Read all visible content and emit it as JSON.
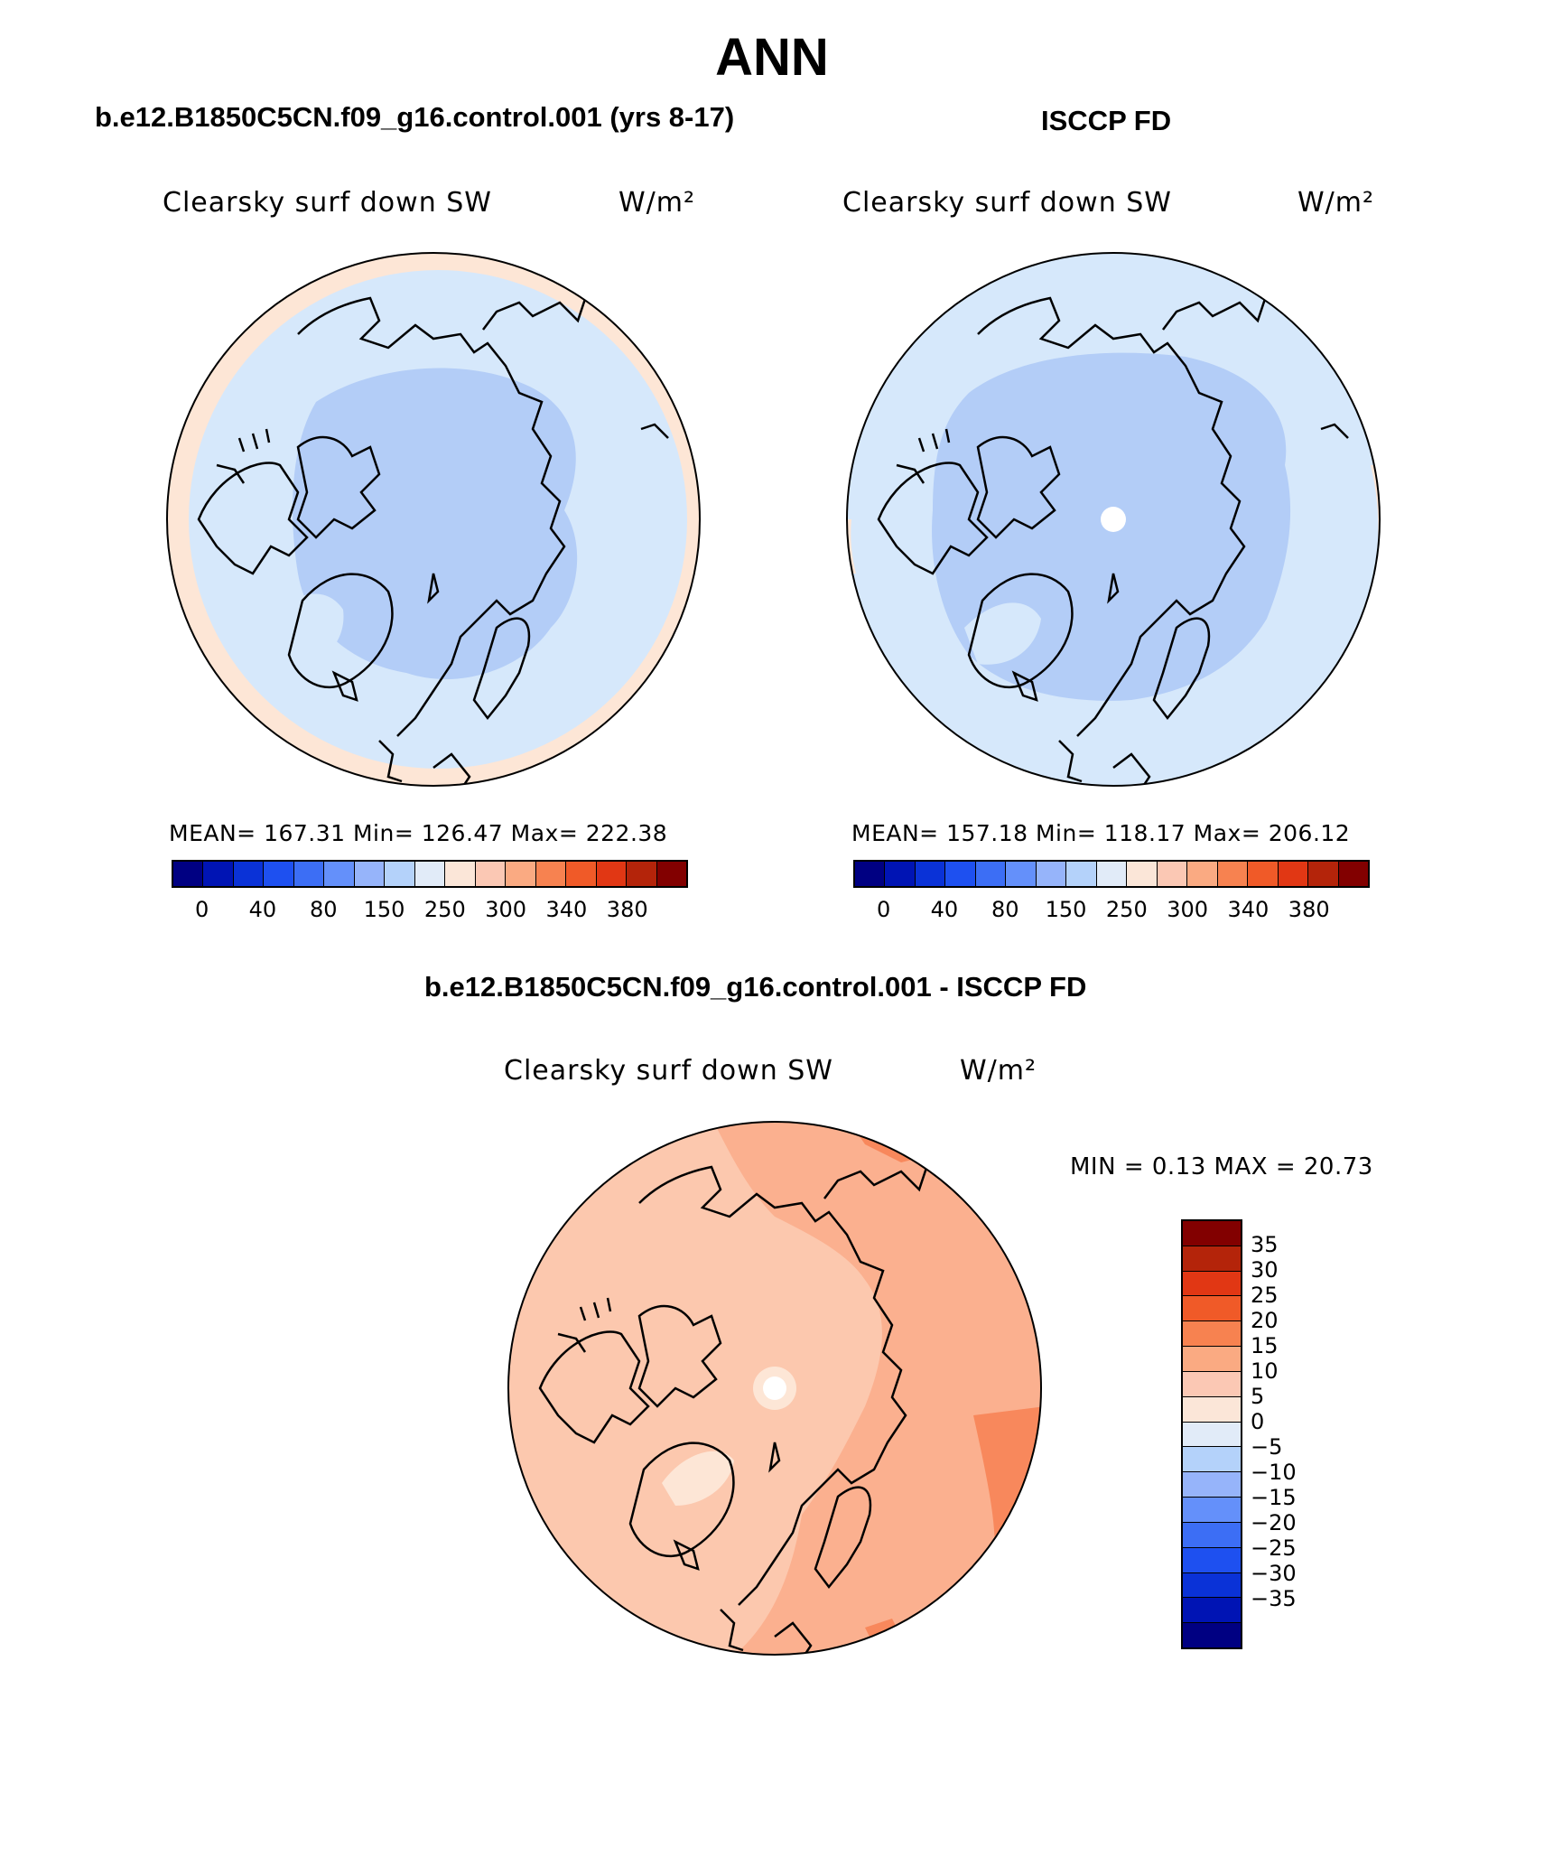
{
  "title": "ANN",
  "left_panel": {
    "header": "b.e12.B1850C5CN.f09_g16.control.001 (yrs 8-17)",
    "variable": "Clearsky surf down SW",
    "units": "W/m²",
    "stats": "MEAN= 167.31   Min= 126.47   Max= 222.38"
  },
  "right_panel": {
    "header": "ISCCP FD",
    "variable": "Clearsky surf down SW",
    "units": "W/m²",
    "stats": "MEAN= 157.18   Min= 118.17   Max= 206.12"
  },
  "diff_panel": {
    "header": "b.e12.B1850C5CN.f09_g16.control.001 - ISCCP FD",
    "variable": "Clearsky surf down SW",
    "units": "W/m²",
    "minmax": "MIN =    0.13 MAX =   20.73"
  },
  "colors": {
    "ocean_light": "#d6e8fb",
    "ocean_mid": "#b3cdf7",
    "ocean_band": "#fde6d6",
    "diff_base": "#fcc8ae",
    "diff_mid": "#fbb08f",
    "diff_strong": "#f8885c"
  },
  "abs_colorbar": {
    "ticks": [
      "0",
      "40",
      "80",
      "150",
      "250",
      "300",
      "340",
      "380"
    ],
    "colors": [
      "#000082",
      "#0014b4",
      "#0a32d7",
      "#1e50f0",
      "#3c6ef5",
      "#6490fa",
      "#96b4fa",
      "#b4d2fa",
      "#e1ebf8",
      "#fbe6d8",
      "#fbc8b4",
      "#faaa82",
      "#f78250",
      "#f05a28",
      "#e13714",
      "#b4240a",
      "#820000"
    ]
  },
  "diff_colorbar": {
    "ticks": [
      "35",
      "30",
      "25",
      "20",
      "15",
      "10",
      "5",
      "0",
      "−5",
      "−10",
      "−15",
      "−20",
      "−25",
      "−30",
      "−35"
    ],
    "colors": [
      "#820000",
      "#b4240a",
      "#e13714",
      "#f05a28",
      "#f78250",
      "#faaa82",
      "#fbc8b4",
      "#fbe6d8",
      "#e1ebf8",
      "#b4d2fa",
      "#96b4fa",
      "#6490fa",
      "#3c6ef5",
      "#1e50f0",
      "#0a32d7",
      "#0014b4",
      "#000082"
    ]
  }
}
